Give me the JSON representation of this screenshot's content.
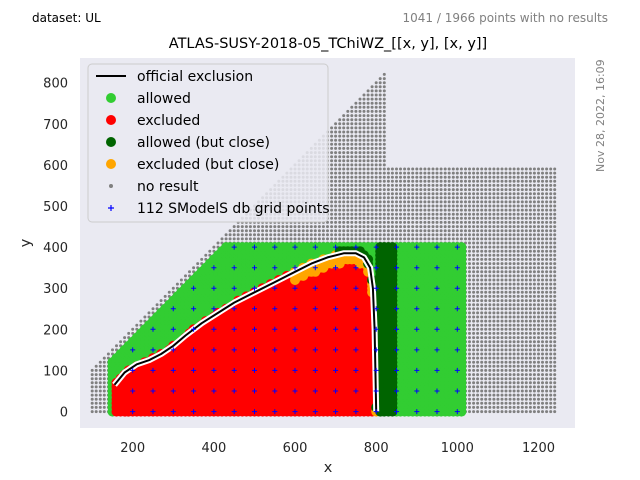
{
  "header": {
    "dataset": "dataset: UL",
    "no_result_summary": "1041 / 1966 points with no results",
    "date": "Nov 28, 2022, 16:09"
  },
  "chart_data": {
    "type": "scatter",
    "title": "ATLAS-SUSY-2018-05_TChiWZ_[[x, y], [x, y]]",
    "xlabel": "x",
    "ylabel": "y",
    "xlim": [
      70,
      1290
    ],
    "ylim": [
      -40,
      860
    ],
    "xticks": [
      200,
      400,
      600,
      800,
      1000,
      1200
    ],
    "yticks": [
      0,
      100,
      200,
      300,
      400,
      500,
      600,
      700,
      800
    ],
    "grid": false,
    "legend_position": "top-left",
    "colors": {
      "background": "#eaeaf2",
      "allowed": "#32cd32",
      "excluded": "#ff0000",
      "allowed_close": "#006400",
      "excluded_close": "#ffa500",
      "no_result": "#808080",
      "grid_points": "#0000ff",
      "exclusion_line": "#000000"
    },
    "legend": [
      {
        "key": "official",
        "label": "official exclusion"
      },
      {
        "key": "allowed",
        "label": "allowed"
      },
      {
        "key": "excluded",
        "label": "excluded"
      },
      {
        "key": "allowed_close",
        "label": "allowed (but close)"
      },
      {
        "key": "excluded_close",
        "label": "excluded (but close)"
      },
      {
        "key": "no_result",
        "label": "no result"
      },
      {
        "key": "grid_points",
        "label": "112 SModelS db grid points"
      }
    ],
    "official_exclusion": {
      "x": [
        155,
        180,
        210,
        240,
        270,
        300,
        330,
        370,
        410,
        450,
        500,
        550,
        600,
        640,
        680,
        720,
        750,
        770,
        785,
        792,
        796,
        798,
        800
      ],
      "y": [
        65,
        95,
        115,
        125,
        140,
        160,
        185,
        215,
        240,
        265,
        290,
        315,
        340,
        360,
        375,
        385,
        385,
        375,
        350,
        300,
        200,
        100,
        0
      ]
    },
    "regions": {
      "no_result": {
        "x_step": 10,
        "y_step": 10,
        "description": "grey dots fill the domain above the diagonal and around the scanned area"
      },
      "allowed_x_max": 1010,
      "allowed_y_max": 400,
      "grid_x": [
        200,
        250,
        300,
        350,
        400,
        450,
        500,
        550,
        600,
        650,
        700,
        750,
        800,
        850,
        900,
        950,
        1000
      ],
      "grid_y": [
        0,
        50,
        100,
        150,
        200,
        250,
        300,
        350,
        400
      ]
    }
  }
}
